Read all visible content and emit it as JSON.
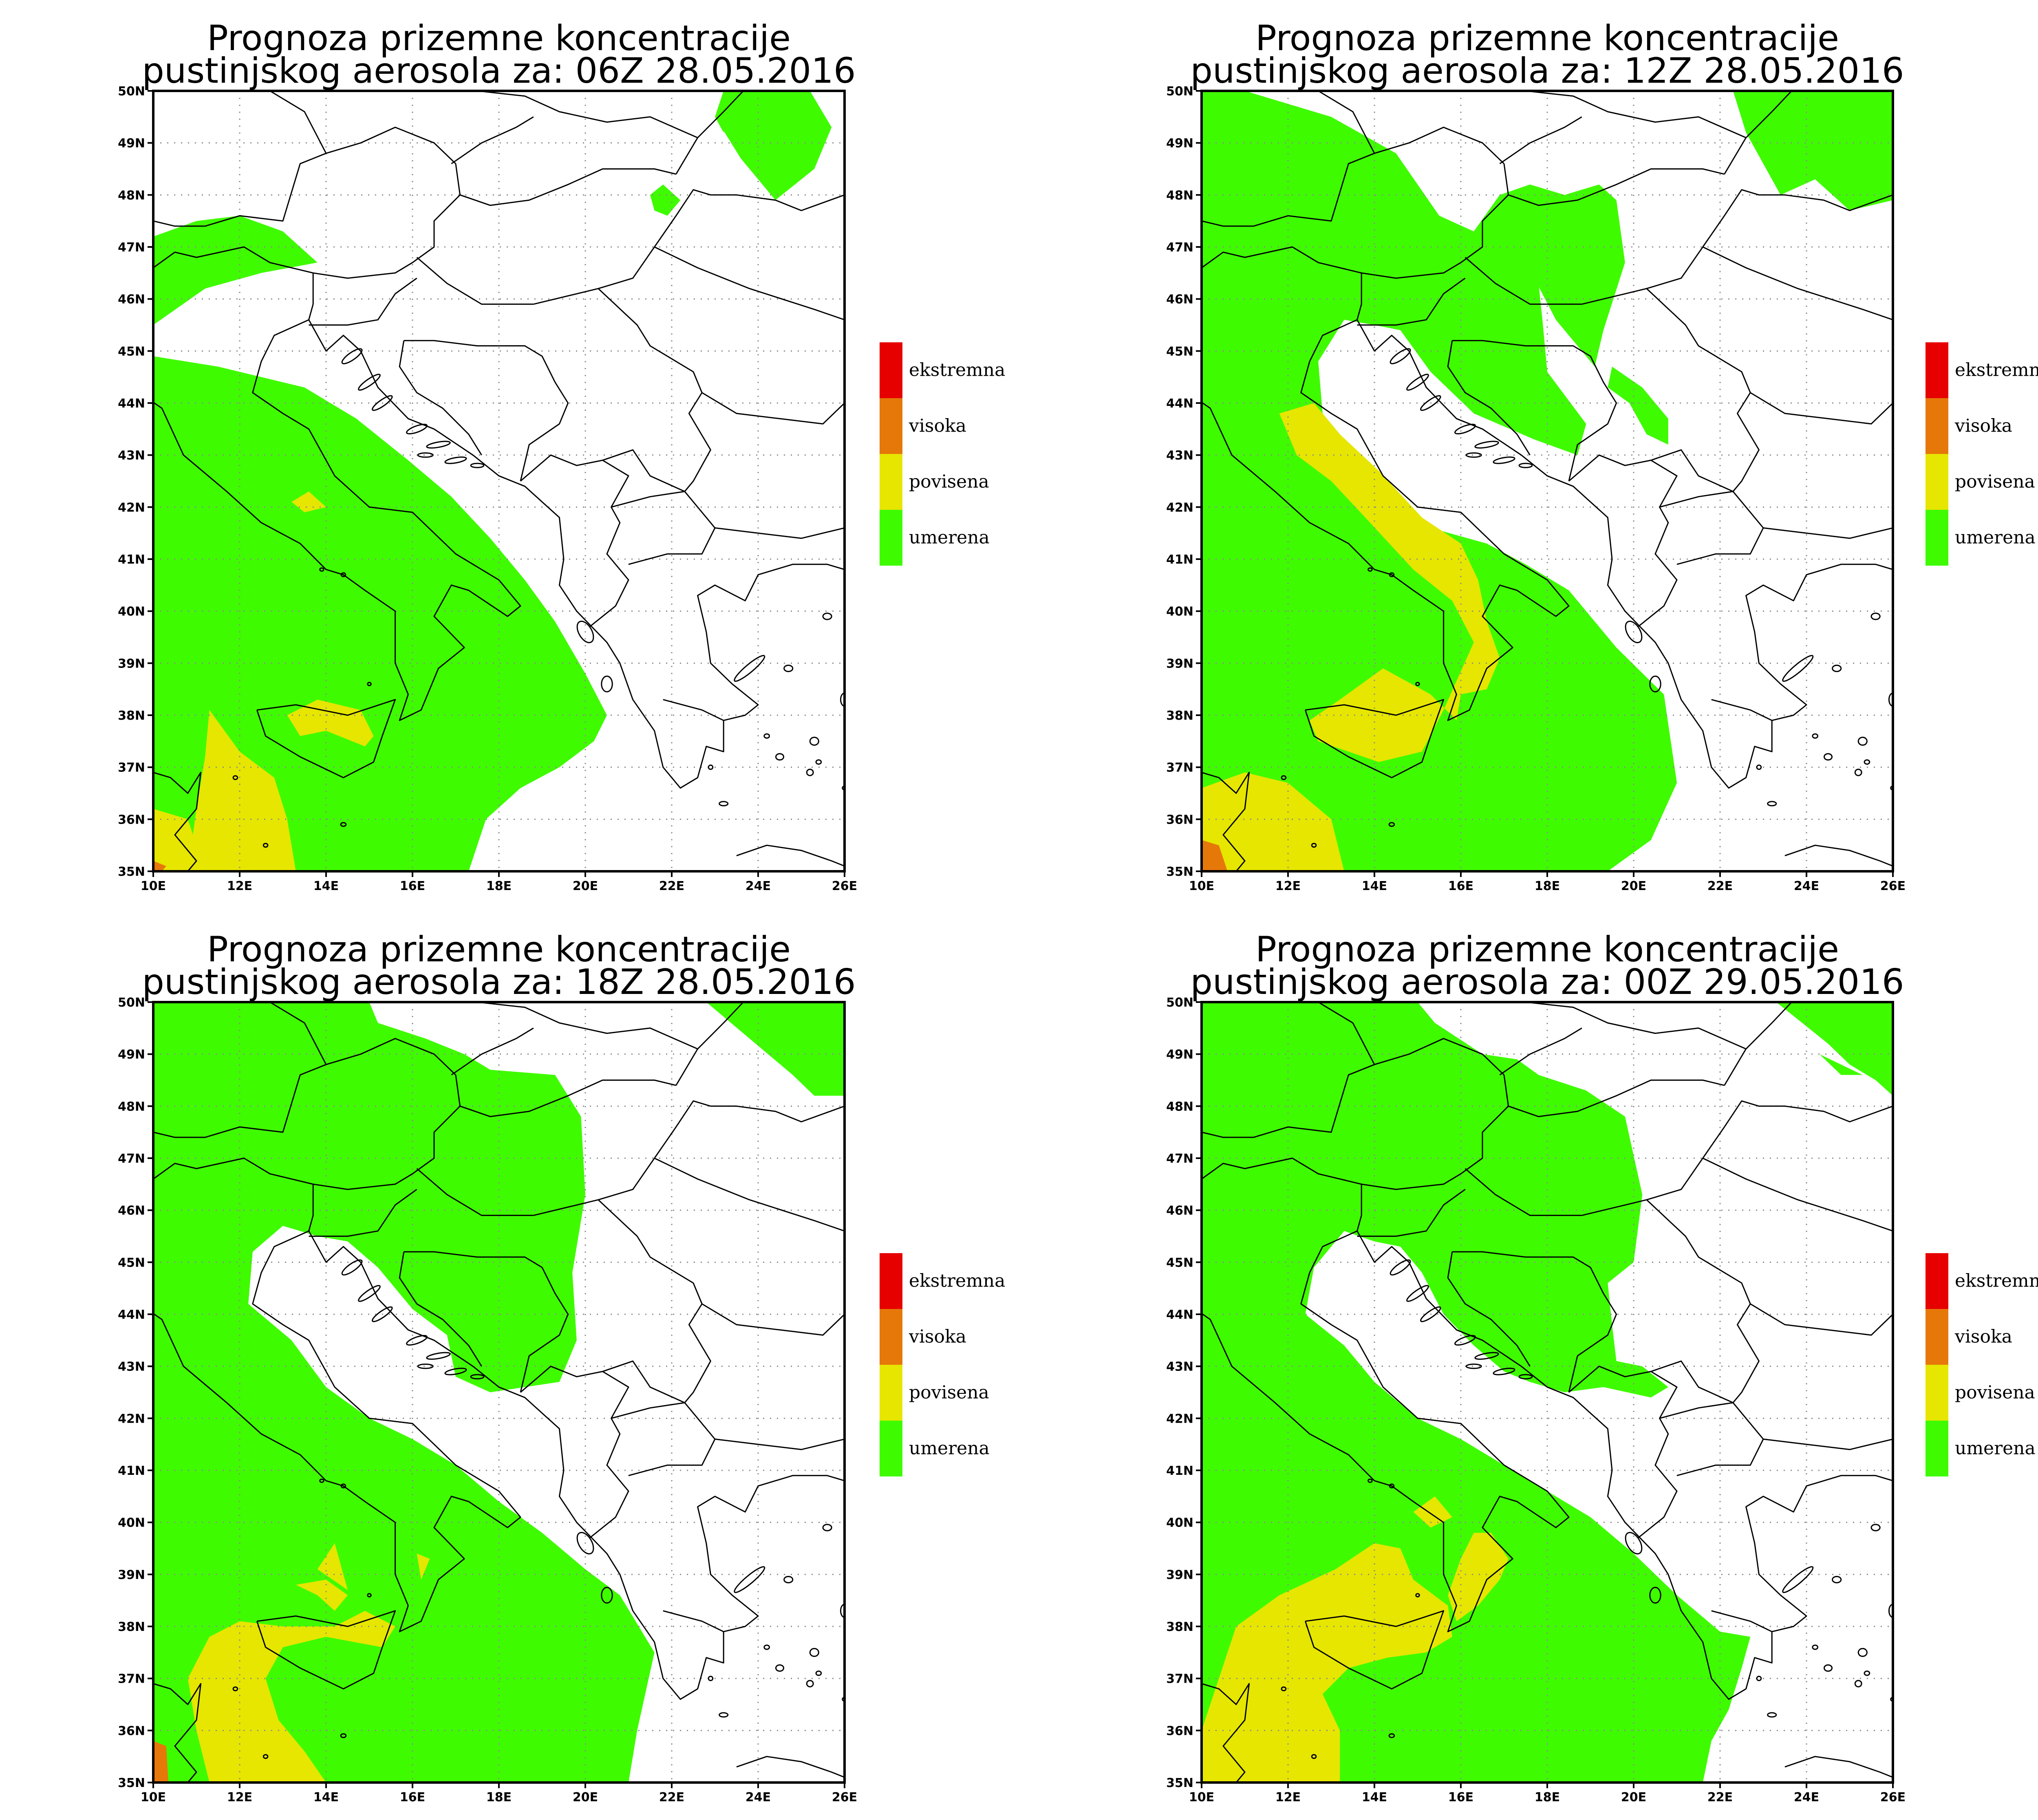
{
  "colors": {
    "umerena": "#3ffb00",
    "povisena": "#e6e600",
    "visoka": "#e6780a",
    "ekstremna": "#e60000",
    "land_line": "#000000",
    "grid": "#8c8c8c",
    "background": "#ffffff"
  },
  "axes": {
    "lon_labels": [
      "10E",
      "12E",
      "14E",
      "16E",
      "18E",
      "20E",
      "22E",
      "24E",
      "26E"
    ],
    "lat_labels": [
      "35N",
      "36N",
      "37N",
      "38N",
      "39N",
      "40N",
      "41N",
      "42N",
      "43N",
      "44N",
      "45N",
      "46N",
      "47N",
      "48N",
      "49N",
      "50N"
    ],
    "lon_range": [
      10,
      26
    ],
    "lat_range": [
      35,
      50
    ],
    "grid": "dotted"
  },
  "legend": {
    "items": [
      {
        "label": "ekstremna",
        "color": "#e60000"
      },
      {
        "label": "visoka",
        "color": "#e6780a"
      },
      {
        "label": "povisena",
        "color": "#e6e600"
      },
      {
        "label": "umerena",
        "color": "#3ffb00"
      }
    ]
  },
  "panels": [
    {
      "title_line1": "Prognoza prizemne koncentracije",
      "title_line2": "pustinjskog aerosola za: 06Z 28.05.2016"
    },
    {
      "title_line1": "Prognoza prizemne koncentracije",
      "title_line2": "pustinjskog aerosola za: 12Z 28.05.2016"
    },
    {
      "title_line1": "Prognoza prizemne koncentracije",
      "title_line2": "pustinjskog aerosola za: 18Z 28.05.2016"
    },
    {
      "title_line1": "Prognoza prizemne koncentracije",
      "title_line2": "pustinjskog aerosola za: 00Z 29.05.2016"
    }
  ]
}
